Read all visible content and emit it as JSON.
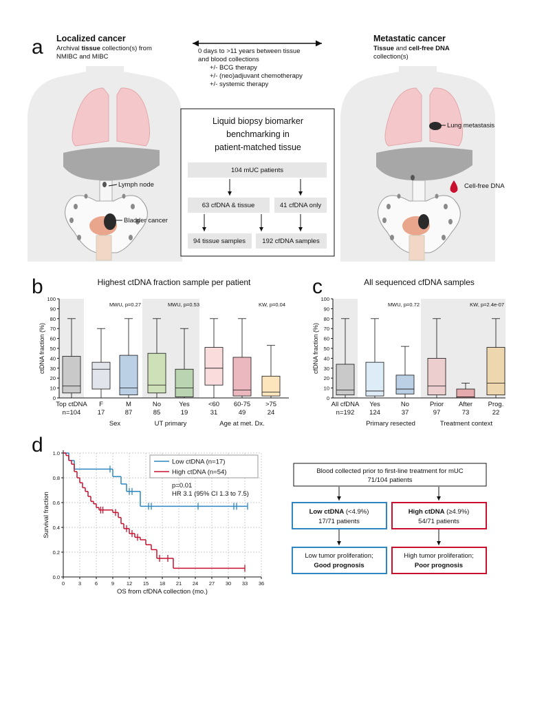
{
  "panel_labels": [
    "a",
    "b",
    "c",
    "d"
  ],
  "a": {
    "left": {
      "title": "Localized cancer",
      "line1": [
        "Archival ",
        "tissue",
        " collection(s) from"
      ],
      "line2": "NMIBC and MIBC",
      "lymph": "Lymph node",
      "bladder": "Bladder cancer"
    },
    "middle": [
      "0 days to >11 years between tissue",
      "and blood collections",
      "+/- BCG therapy",
      "+/- (neo)adjuvant chemotherapy",
      "+/- systemic therapy"
    ],
    "right": {
      "title": "Metastatic cancer",
      "line1": [
        "Tissue",
        " and ",
        "cell-free DNA"
      ],
      "line2": "collection(s)",
      "lung": "Lung metastasis",
      "cfdna": "Cell-free DNA"
    },
    "box": {
      "title": [
        "Liquid biopsy biomarker",
        "benchmarking in",
        "patient-matched tissue"
      ],
      "nodes": [
        "104 mUC patients",
        "63 cfDNA & tissue",
        "41 cfDNA only",
        "94 tissue samples",
        "192 cfDNA samples"
      ]
    }
  },
  "chart_data": [
    {
      "type": "box",
      "title": "Highest ctDNA fraction sample per patient",
      "ylabel": "ctDNA fraction (%)",
      "ylim": [
        0,
        100
      ],
      "yticks": [
        0,
        10,
        20,
        30,
        40,
        50,
        60,
        70,
        80,
        90,
        100
      ],
      "groups": [
        {
          "label": "Top ctDNA",
          "n": "n=104",
          "color": "#7a7a7a",
          "min": 0,
          "q1": 5,
          "median": 12,
          "q3": 42,
          "max": 80
        },
        {
          "label": "F",
          "n": 17,
          "color": "#9aa7b8",
          "min": 0,
          "q1": 9,
          "median": 29,
          "q3": 36,
          "max": 70
        },
        {
          "label": "M",
          "n": 87,
          "color": "#1f5fa8",
          "min": 0,
          "q1": 3,
          "median": 10,
          "q3": 43,
          "max": 80
        },
        {
          "label": "No",
          "n": 85,
          "color": "#8cc63f",
          "min": 0,
          "q1": 5,
          "median": 13,
          "q3": 45,
          "max": 80
        },
        {
          "label": "Yes",
          "n": 19,
          "color": "#4a9a2a",
          "min": 0,
          "q1": 1,
          "median": 10,
          "q3": 29,
          "max": 70
        },
        {
          "label": "<60",
          "n": 31,
          "color": "#f08a8a",
          "min": 0,
          "q1": 13,
          "median": 30,
          "q3": 51,
          "max": 80
        },
        {
          "label": "60-75",
          "n": 49,
          "color": "#c0142a",
          "min": 0,
          "q1": 2,
          "median": 8,
          "q3": 41,
          "max": 80
        },
        {
          "label": ">75",
          "n": 24,
          "color": "#f5a623",
          "min": 0,
          "q1": 2,
          "median": 6,
          "q3": 22,
          "max": 53
        }
      ],
      "sections": [
        "Sex",
        "UT primary",
        "Age at met. Dx."
      ],
      "tests": [
        "MWU, p=0.27",
        "MWU, p=0.53",
        "KW, p=0.04"
      ]
    },
    {
      "type": "box",
      "title": "All sequenced cfDNA samples",
      "ylabel": "cfDNA fraction (%)",
      "ylim": [
        0,
        100
      ],
      "yticks": [
        0,
        10,
        20,
        30,
        40,
        50,
        60,
        70,
        80,
        90,
        100
      ],
      "groups": [
        {
          "label": "All cfDNA",
          "n": "n=192",
          "color": "#7a7a7a",
          "min": 0,
          "q1": 3,
          "median": 8,
          "q3": 34,
          "max": 80
        },
        {
          "label": "Yes",
          "n": 124,
          "color": "#8fc0e6",
          "min": 0,
          "q1": 2,
          "median": 7,
          "q3": 36,
          "max": 80
        },
        {
          "label": "No",
          "n": 37,
          "color": "#1f5fa8",
          "min": 0,
          "q1": 4,
          "median": 9,
          "q3": 23,
          "max": 52
        },
        {
          "label": "Prior",
          "n": 97,
          "color": "#f08a8a",
          "min": 0,
          "q1": 3,
          "median": 12,
          "q3": 40,
          "max": 80
        },
        {
          "label": "After",
          "n": 73,
          "color": "#d8141f",
          "min": 0,
          "q1": 0,
          "median": 1,
          "q3": 9,
          "max": 15
        },
        {
          "label": "Prog.",
          "n": 22,
          "color": "#f5a623",
          "min": 0,
          "q1": 3,
          "median": 15,
          "q3": 51,
          "max": 80
        }
      ],
      "sections": [
        "Primary resected",
        "Treatment context"
      ],
      "tests": [
        "MWU, p=0.72",
        "KW, p=2.4e-07"
      ]
    },
    {
      "type": "km",
      "xlabel": "OS from cfDNA collection (mo.)",
      "ylabel": "Survival fraction",
      "xlim": [
        0,
        36
      ],
      "xticks": [
        0,
        3,
        6,
        9,
        12,
        15,
        18,
        21,
        24,
        27,
        30,
        33,
        36
      ],
      "ylim": [
        0,
        1
      ],
      "yticks": [
        {
          "value": 0,
          "label": "0.0"
        },
        {
          "value": 0.2,
          "label": "0.2"
        },
        {
          "value": 0.4,
          "label": "0.4"
        },
        {
          "value": 0.6,
          "label": "0.6"
        },
        {
          "value": 0.8,
          "label": "0.8"
        },
        {
          "value": 1,
          "label": "1.0"
        }
      ],
      "grid": true,
      "series": [
        {
          "name": "Low ctDNA (n=17)",
          "color": "#2e86c1",
          "times": [
            0,
            1,
            2,
            9,
            10.5,
            11.5,
            14
          ],
          "survival": [
            1,
            0.94,
            0.87,
            0.81,
            0.75,
            0.69,
            0.57
          ],
          "censor_times": [
            8.5,
            12,
            12.5,
            15.5,
            16,
            24.5,
            31,
            31.5,
            33.5
          ],
          "censor_survival": [
            0.87,
            0.69,
            0.69,
            0.57,
            0.57,
            0.57,
            0.57,
            0.57,
            0.57
          ]
        },
        {
          "name": "High ctDNA (n=54)",
          "color": "#c8102e",
          "times": [
            0,
            0.5,
            1,
            1.5,
            2,
            2.5,
            3,
            3.5,
            4,
            4.5,
            5,
            5.5,
            6,
            6.5,
            9,
            10,
            10.5,
            11,
            12,
            13,
            14,
            15,
            16,
            17,
            20
          ],
          "survival": [
            1,
            0.98,
            0.94,
            0.91,
            0.85,
            0.8,
            0.76,
            0.72,
            0.69,
            0.65,
            0.61,
            0.59,
            0.56,
            0.54,
            0.52,
            0.48,
            0.43,
            0.39,
            0.35,
            0.32,
            0.3,
            0.26,
            0.22,
            0.15,
            0.07
          ],
          "censor_times": [
            6.8,
            7.2,
            9.5,
            11.5,
            12.5,
            13.5,
            17.5,
            19,
            33
          ],
          "censor_survival": [
            0.54,
            0.54,
            0.52,
            0.39,
            0.35,
            0.32,
            0.15,
            0.15,
            0.07
          ]
        }
      ],
      "annotations": [
        "p=0.01",
        "HR 3.1 (95% CI 1.3 to 7.5)"
      ]
    }
  ],
  "flow": {
    "top": [
      "Blood collected prior to first-line treatment for mUC",
      "71/104 patients"
    ],
    "low": [
      [
        "Low ctDNA",
        " (<4.9%)"
      ],
      "17/71 patients"
    ],
    "high": [
      [
        "High ctDNA",
        " (≥4.9%)"
      ],
      "54/71 patients"
    ],
    "low_out": [
      "Low tumor proliferation;",
      "Good prognosis"
    ],
    "high_out": [
      "High tumor proliferation;",
      "Poor prognosis"
    ]
  }
}
